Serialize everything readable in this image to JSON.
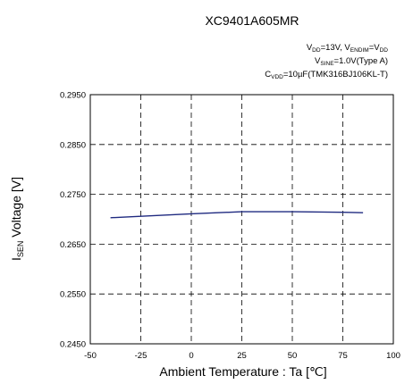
{
  "chart_data": {
    "type": "line",
    "title": "XC9401A605MR",
    "conditions": {
      "line1": {
        "v1": "V",
        "v1_sub": "DD",
        "v1_rest": "=13V, V",
        "v2_sub": "ENDIM",
        "v2_rest": "=V",
        "v3_sub": "DD"
      },
      "line2": {
        "a": "V",
        "a_sub": "SINE",
        "a_rest": "=1.0V(Type A)"
      },
      "line3": {
        "a": "C",
        "a_sub": "VDD",
        "a_rest": "=10µF(TMK316BJ106KL-T)"
      }
    },
    "xlabel": "Ambient Temperature : Ta [℃]",
    "ylabel": {
      "main": "I",
      "sub": "SEN",
      "rest": " Voltage [V]"
    },
    "xlim": [
      -50,
      100
    ],
    "ylim": [
      0.245,
      0.295
    ],
    "x_ticks": [
      "-50",
      "-25",
      "0",
      "25",
      "50",
      "75",
      "100"
    ],
    "y_ticks": [
      "0.2450",
      "0.2550",
      "0.2650",
      "0.2750",
      "0.2850",
      "0.2950"
    ],
    "grid": true,
    "series": [
      {
        "color": "#1f2a80",
        "x": [
          -40,
          -25,
          0,
          25,
          50,
          75,
          85
        ],
        "y": [
          0.2703,
          0.2706,
          0.2711,
          0.2715,
          0.2715,
          0.2714,
          0.2713
        ]
      }
    ]
  }
}
